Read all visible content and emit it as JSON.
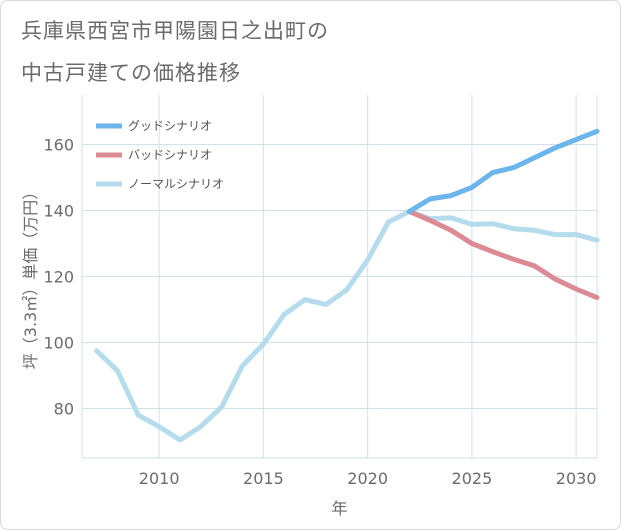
{
  "title_line1": "兵庫県西宮市甲陽園日之出町の",
  "title_line2": "中古戸建ての価格推移",
  "chart_data": {
    "type": "line",
    "xlabel": "年",
    "ylabel": "坪（3.3㎡）単価（万円）",
    "xlim": [
      2006.3,
      2031
    ],
    "ylim": [
      65,
      175
    ],
    "xticks": [
      2010,
      2015,
      2020,
      2025,
      2030
    ],
    "yticks": [
      80,
      100,
      120,
      140,
      160
    ],
    "grid": true,
    "legend_position": "top-left",
    "series": [
      {
        "name": "グッドシナリオ",
        "color": "#6cb4ec",
        "x": [
          2022,
          2023,
          2024,
          2025,
          2026,
          2027,
          2028,
          2029,
          2030,
          2031
        ],
        "y": [
          139.7,
          143.5,
          144.5,
          147,
          151.5,
          153,
          156,
          159,
          161.5,
          164
        ]
      },
      {
        "name": "バッドシナリオ",
        "color": "#dc8a94",
        "x": [
          2022,
          2023,
          2024,
          2025,
          2026,
          2027,
          2028,
          2029,
          2030,
          2031
        ],
        "y": [
          139.7,
          137,
          134,
          130,
          127.5,
          125.2,
          123.2,
          119.2,
          116.2,
          113.6
        ]
      },
      {
        "name": "ノーマルシナリオ",
        "color": "#b5dcec",
        "x": [
          2007,
          2008,
          2009,
          2010,
          2011,
          2012,
          2013,
          2014,
          2015,
          2016,
          2017,
          2018,
          2019,
          2020,
          2021,
          2022,
          2023,
          2024,
          2025,
          2026,
          2027,
          2028,
          2029,
          2030,
          2031
        ],
        "y": [
          97.5,
          91.5,
          78,
          74.5,
          70.5,
          74.5,
          80.5,
          93,
          99.5,
          108.5,
          113,
          111.5,
          116,
          125,
          136.5,
          139.7,
          137.5,
          137.8,
          135.8,
          136,
          134.5,
          134,
          132.7,
          132.7,
          131
        ]
      }
    ]
  }
}
